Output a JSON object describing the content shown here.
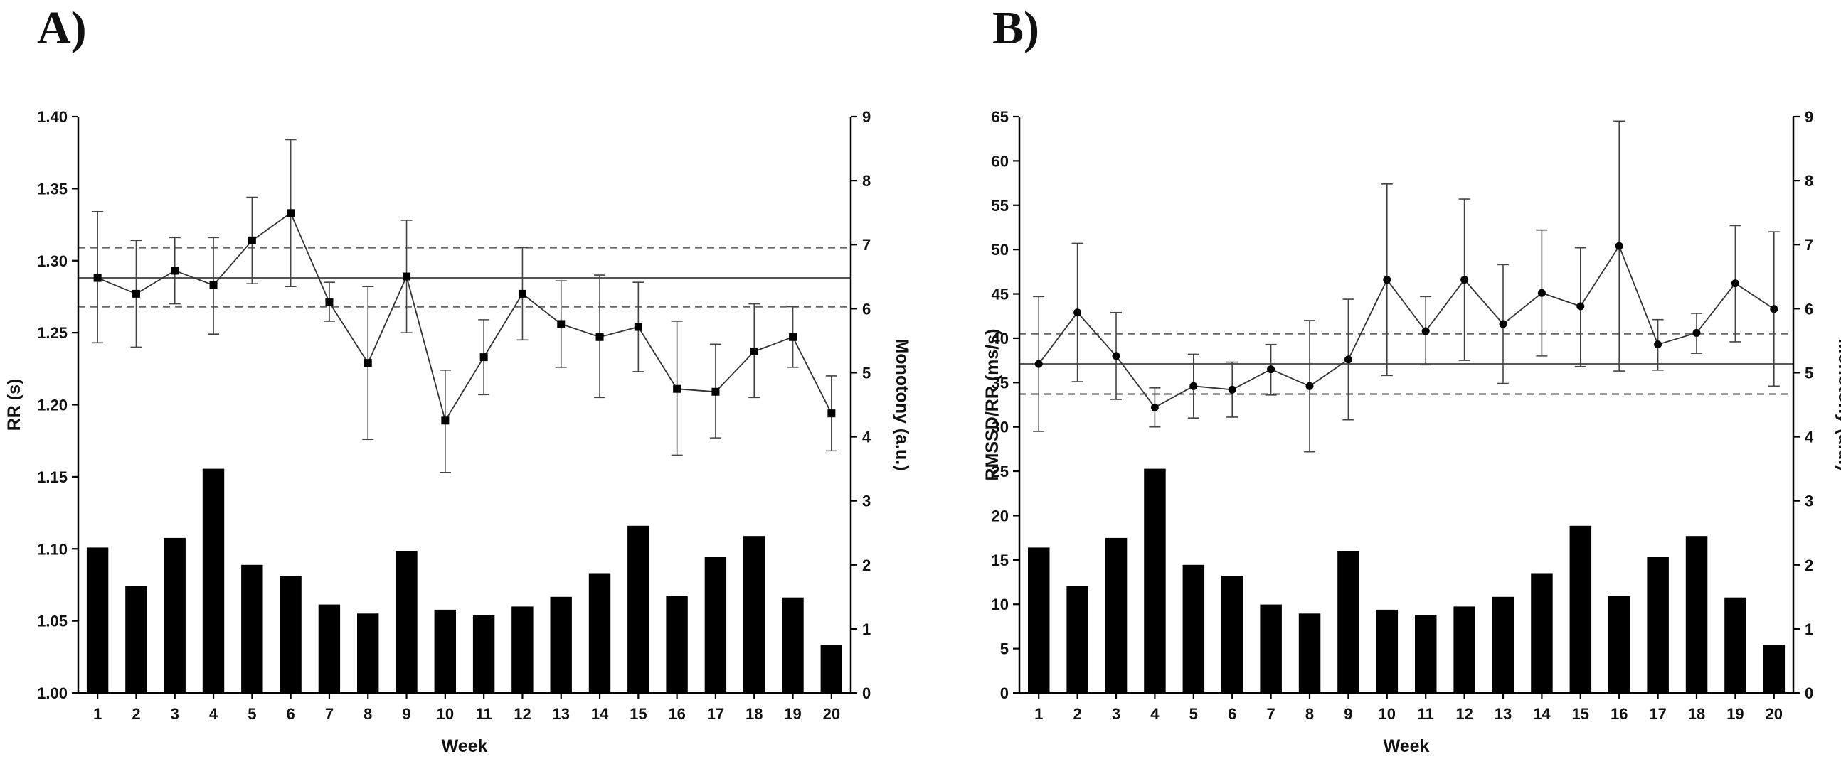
{
  "panels": {
    "a_label": "A)",
    "b_label": "B)"
  },
  "chart_data": [
    {
      "id": "A",
      "type": "bar+line",
      "xlabel": "Week",
      "ylabel_left": "RR (s)",
      "ylabel_right": "Monotony (a.u.)",
      "categories": [
        "1",
        "2",
        "3",
        "4",
        "5",
        "6",
        "7",
        "8",
        "9",
        "10",
        "11",
        "12",
        "13",
        "14",
        "15",
        "16",
        "17",
        "18",
        "19",
        "20"
      ],
      "ylim_left": [
        1.0,
        1.4
      ],
      "yticks_left": [
        "1.00",
        "1.05",
        "1.10",
        "1.15",
        "1.20",
        "1.25",
        "1.30",
        "1.35",
        "1.40"
      ],
      "ylim_right": [
        0,
        9
      ],
      "yticks_right": [
        "0",
        "1",
        "2",
        "3",
        "4",
        "5",
        "6",
        "7",
        "8",
        "9"
      ],
      "bars": {
        "name": "Monotony",
        "axis": "right",
        "values": [
          2.27,
          1.67,
          2.42,
          3.5,
          2.0,
          1.83,
          1.38,
          1.24,
          2.22,
          1.3,
          1.21,
          1.35,
          1.5,
          1.87,
          2.61,
          1.51,
          2.12,
          2.45,
          1.49,
          0.75
        ]
      },
      "line": {
        "name": "RR",
        "axis": "left",
        "marker": "square",
        "values": [
          1.288,
          1.277,
          1.293,
          1.283,
          1.314,
          1.333,
          1.271,
          1.229,
          1.289,
          1.189,
          1.233,
          1.277,
          1.256,
          1.247,
          1.254,
          1.211,
          1.209,
          1.237,
          1.247,
          1.194
        ],
        "err_low": [
          1.243,
          1.24,
          1.27,
          1.249,
          1.284,
          1.282,
          1.258,
          1.176,
          1.25,
          1.153,
          1.207,
          1.245,
          1.226,
          1.205,
          1.223,
          1.165,
          1.177,
          1.205,
          1.226,
          1.168
        ],
        "err_high": [
          1.334,
          1.314,
          1.316,
          1.316,
          1.344,
          1.384,
          1.285,
          1.282,
          1.328,
          1.224,
          1.259,
          1.309,
          1.286,
          1.29,
          1.285,
          1.258,
          1.242,
          1.27,
          1.268,
          1.22
        ]
      },
      "reference_lines": {
        "mean": 1.288,
        "upper": 1.309,
        "lower": 1.268
      }
    },
    {
      "id": "B",
      "type": "bar+line",
      "xlabel": "Week",
      "ylabel_left": "RMSSD/RR (ms/s)",
      "ylabel_right": "Monotony (a.u.)",
      "categories": [
        "1",
        "2",
        "3",
        "4",
        "5",
        "6",
        "7",
        "8",
        "9",
        "10",
        "11",
        "12",
        "13",
        "14",
        "15",
        "16",
        "17",
        "18",
        "19",
        "20"
      ],
      "ylim_left": [
        0,
        65
      ],
      "yticks_left": [
        "0",
        "5",
        "10",
        "15",
        "20",
        "25",
        "30",
        "35",
        "40",
        "45",
        "50",
        "55",
        "60",
        "65"
      ],
      "ylim_right": [
        0,
        9
      ],
      "yticks_right": [
        "0",
        "1",
        "2",
        "3",
        "4",
        "5",
        "6",
        "7",
        "8",
        "9"
      ],
      "bars": {
        "name": "Monotony",
        "axis": "right",
        "values": [
          2.27,
          1.67,
          2.42,
          3.5,
          2.0,
          1.83,
          1.38,
          1.24,
          2.22,
          1.3,
          1.21,
          1.35,
          1.5,
          1.87,
          2.61,
          1.51,
          2.12,
          2.45,
          1.49,
          0.75
        ]
      },
      "line": {
        "name": "RMSSD/RR",
        "axis": "left",
        "marker": "circle",
        "values": [
          37.1,
          42.9,
          38.0,
          32.2,
          34.6,
          34.2,
          36.5,
          34.6,
          37.6,
          46.6,
          40.8,
          46.6,
          41.6,
          45.1,
          43.6,
          50.4,
          39.3,
          40.6,
          46.2,
          43.3
        ],
        "err_low": [
          29.5,
          35.1,
          33.1,
          30.0,
          31.0,
          31.1,
          33.6,
          27.2,
          30.8,
          35.8,
          37.0,
          37.5,
          34.9,
          38.0,
          36.8,
          36.3,
          36.4,
          38.3,
          39.6,
          34.6
        ],
        "err_high": [
          44.7,
          50.7,
          42.9,
          34.4,
          38.2,
          37.3,
          39.3,
          42.0,
          44.4,
          57.4,
          44.7,
          55.7,
          48.3,
          52.2,
          50.2,
          64.5,
          42.1,
          42.8,
          52.7,
          52.0
        ]
      },
      "reference_lines": {
        "mean": 37.1,
        "upper": 40.5,
        "lower": 33.7
      }
    }
  ]
}
